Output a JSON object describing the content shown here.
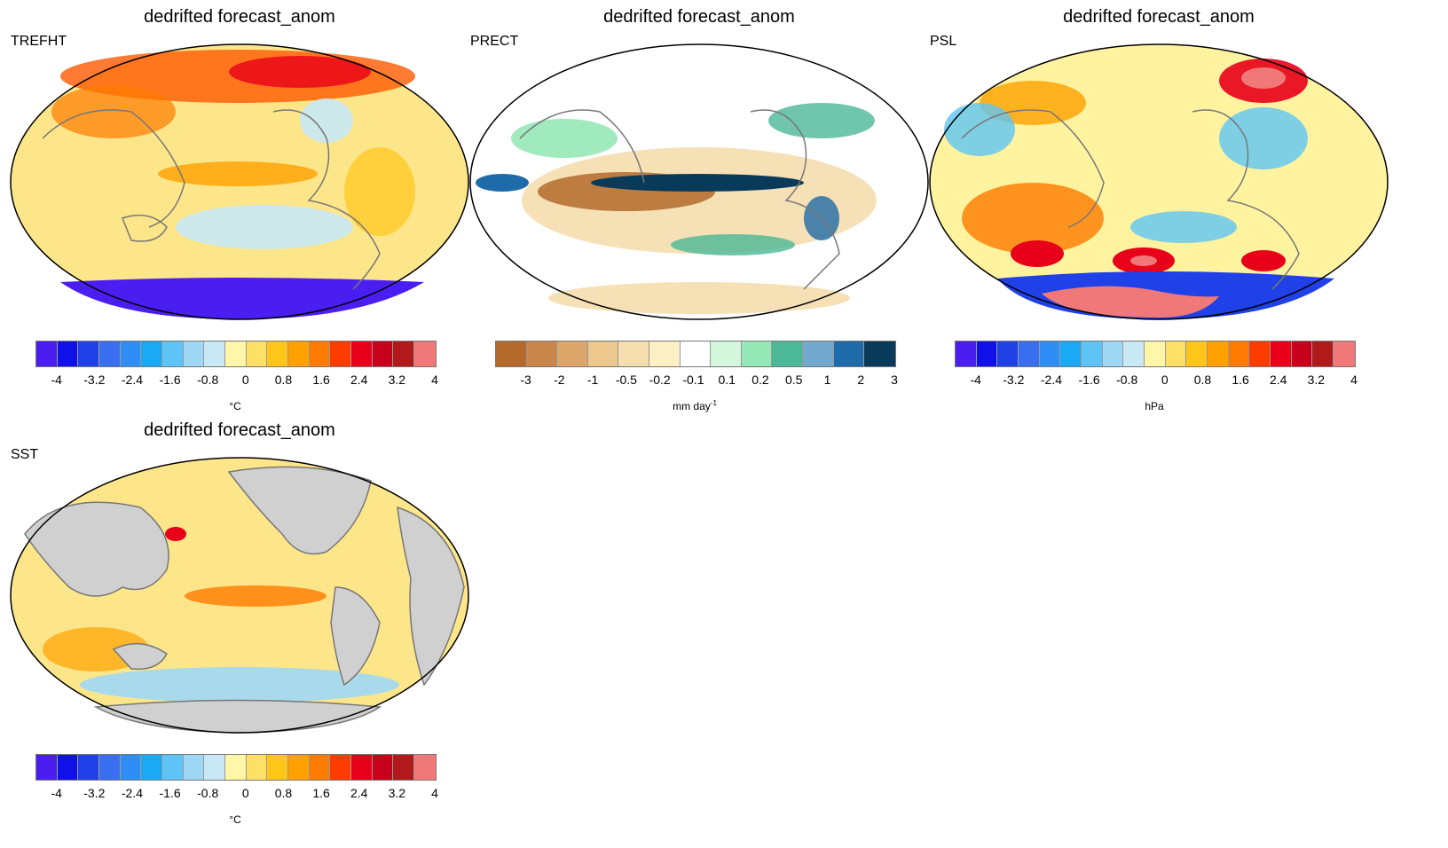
{
  "panels": [
    {
      "title": "dedrifted forecast_anom",
      "variable": "TREFHT",
      "unit": "°C",
      "unit_sup": "",
      "map_fill": "#fde68a",
      "land_fill": "",
      "ticks": [
        "-4",
        "-3.2",
        "-2.4",
        "-1.6",
        "-0.8",
        "0",
        "0.8",
        "1.6",
        "2.4",
        "3.2",
        "4"
      ]
    },
    {
      "title": "dedrifted forecast_anom",
      "variable": "PRECT",
      "unit": "mm day",
      "unit_sup": "-1",
      "map_fill": "#f5dcb0",
      "land_fill": "",
      "ticks": [
        "-3",
        "-2",
        "-1",
        "-0.5",
        "-0.2",
        "-0.1",
        "0.1",
        "0.2",
        "0.5",
        "1",
        "2",
        "3"
      ]
    },
    {
      "title": "dedrifted forecast_anom",
      "variable": "PSL",
      "unit": "hPa",
      "unit_sup": "",
      "map_fill": "#fff3a0",
      "land_fill": "",
      "ticks": [
        "-4",
        "-3.2",
        "-2.4",
        "-1.6",
        "-0.8",
        "0",
        "0.8",
        "1.6",
        "2.4",
        "3.2",
        "4"
      ]
    },
    {
      "title": "dedrifted forecast_anom",
      "variable": "SST",
      "unit": "°C",
      "unit_sup": "",
      "map_fill": "#fde68a",
      "land_fill": "#d0d0d0",
      "ticks": [
        "-4",
        "-3.2",
        "-2.4",
        "-1.6",
        "-0.8",
        "0",
        "0.8",
        "1.6",
        "2.4",
        "3.2",
        "4"
      ]
    }
  ],
  "colorbars": {
    "diverging": [
      "#4a1ef0",
      "#1010e8",
      "#2040e8",
      "#3a6ef0",
      "#2f8ef5",
      "#1aaaf5",
      "#5ec4f5",
      "#9fd8f5",
      "#c8e8f5",
      "#fff6a8",
      "#ffe066",
      "#ffc61a",
      "#ffa100",
      "#ff7a00",
      "#ff3c00",
      "#e8001a",
      "#c8001a",
      "#b01a1a",
      "#f07878"
    ],
    "precip": [
      "#b36a2c",
      "#c9864a",
      "#dca56a",
      "#ecc78e",
      "#f5ddae",
      "#fdf0c4",
      "#ffffff",
      "#d2f7dc",
      "#97e8b7",
      "#4cb897",
      "#73a8cf",
      "#1f6aa8",
      "#0a3a5a"
    ]
  }
}
